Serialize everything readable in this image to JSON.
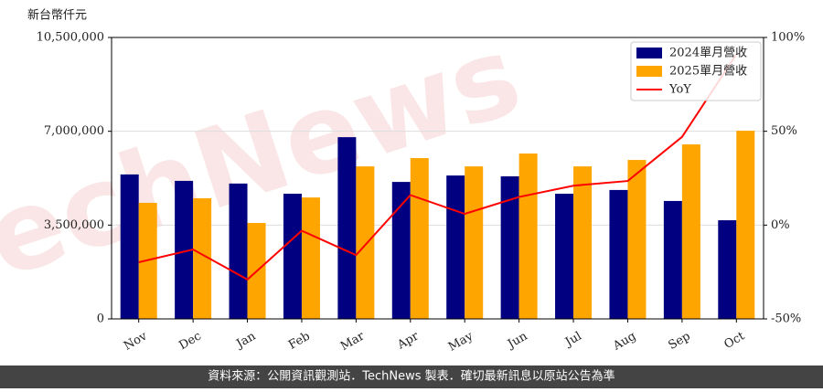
{
  "chart_data": {
    "type": "bar",
    "ylabel": "新台幣仟元",
    "watermark": "TechNews",
    "footer": "資料來源：公開資訊觀測站．TechNews 製表．確切最新訊息以原站公告為準",
    "categories": [
      "Nov",
      "Dec",
      "Jan",
      "Feb",
      "Mar",
      "Apr",
      "May",
      "Jun",
      "Jul",
      "Aug",
      "Sep",
      "Oct"
    ],
    "series": [
      {
        "name": "2024單月營收",
        "color": "#000080",
        "values": [
          5390000,
          5150000,
          5050000,
          4670000,
          6780000,
          5110000,
          5350000,
          5320000,
          4670000,
          4810000,
          4400000,
          3680000
        ]
      },
      {
        "name": "2025單月營收",
        "color": "#ffa500",
        "values": [
          4330000,
          4500000,
          3580000,
          4530000,
          5690000,
          6000000,
          5690000,
          6170000,
          5690000,
          5930000,
          6510000,
          7020000
        ]
      },
      {
        "name": "YoY",
        "type": "line",
        "axis": "y2",
        "color": "#ff0000",
        "values": [
          -19.8,
          -13,
          -29,
          -3,
          -16,
          16,
          6,
          15,
          21,
          23.5,
          47,
          91
        ]
      }
    ],
    "ylim": [
      0,
      10500000
    ],
    "yticks": [
      0,
      {
        "value": 3500000,
        "label": "3,500,000"
      },
      {
        "value": 7000000,
        "label": "7,000,000"
      },
      {
        "value": 10500000,
        "label": "10,500,000"
      }
    ],
    "y2lim": [
      -50,
      100
    ],
    "y2ticks": [
      {
        "value": -50,
        "label": "-50%"
      },
      {
        "value": 0,
        "label": "0%"
      },
      {
        "value": 50,
        "label": "50%"
      },
      {
        "value": 100,
        "label": "100%"
      }
    ],
    "grid": true,
    "legend": "upper right"
  }
}
